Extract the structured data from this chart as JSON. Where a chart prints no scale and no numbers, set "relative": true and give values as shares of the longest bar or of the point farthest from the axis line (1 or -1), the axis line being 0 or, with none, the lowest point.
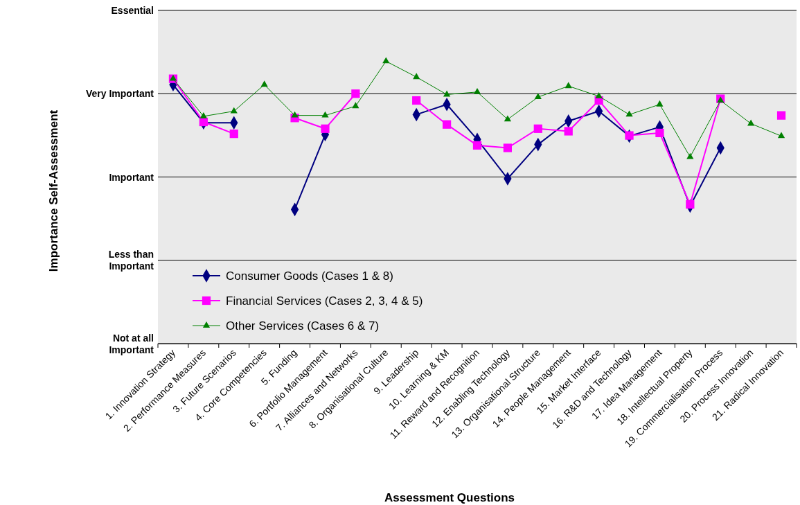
{
  "chart_data": {
    "type": "line",
    "xlabel": "Assessment Questions",
    "ylabel": "Importance Self-Assessment",
    "categories": [
      "1. Innovation Strategy",
      "2. Performance Measures",
      "3. Future Scenarios",
      "4. Core Competencies",
      "5. Funding",
      "6. Portfolio Management",
      "7. Alliances and Networks",
      "8. Organisational Culture",
      "9. Leadership",
      "10. Learning & KM",
      "11. Reward and Recognition",
      "12. Enabling Technology",
      "13. Organisational Structure",
      "14. People Management",
      "15. Market Interface",
      "16. R&D and Technology",
      "17. Idea Management",
      "18. Intellectual Property",
      "19. Commercialisation Process",
      "20. Process Innovation",
      "21. Radical Innovation"
    ],
    "series": [
      {
        "name": "Consumer Goods (Cases 1 & 8)",
        "color": "#000080",
        "marker": "diamond",
        "values": [
          0.917,
          0.782,
          0.782,
          null,
          0.475,
          0.74,
          null,
          null,
          0.811,
          0.847,
          0.723,
          0.584,
          0.705,
          0.788,
          0.823,
          0.735,
          0.767,
          0.487,
          0.693,
          null,
          null
        ]
      },
      {
        "name": "Financial Services (Cases 2, 3, 4 & 5)",
        "color": "#ff00ff",
        "marker": "square",
        "values": [
          0.938,
          0.785,
          0.743,
          null,
          0.799,
          0.761,
          0.885,
          null,
          0.861,
          0.776,
          0.702,
          0.693,
          0.761,
          0.752,
          0.861,
          0.737,
          0.746,
          0.493,
          0.867,
          null,
          0.808
        ]
      },
      {
        "name": "Other Services (Cases 6 & 7)",
        "color": "#008000",
        "marker": "triangle",
        "values": [
          0.938,
          0.805,
          0.823,
          0.917,
          0.808,
          0.808,
          0.841,
          1,
          0.944,
          0.882,
          0.891,
          0.794,
          0.873,
          0.912,
          0.876,
          0.811,
          0.847,
          0.661,
          0.861,
          0.779,
          0.735
        ]
      }
    ],
    "relative": true,
    "ref_lines": [
      {
        "axis": "y",
        "value": 0,
        "label": "Not at all Important",
        "color": "#000000"
      },
      {
        "axis": "y",
        "value": 0.295,
        "label": "Less than Important",
        "color": "#000000"
      },
      {
        "axis": "y",
        "value": 0.59,
        "label": "Important",
        "color": "#000000"
      },
      {
        "axis": "y",
        "value": 0.885,
        "label": "Very Important",
        "color": "#000000"
      },
      {
        "axis": "y",
        "value": 1.18,
        "label": "Essential",
        "color": "#000000"
      }
    ],
    "legend": "bottom left",
    "line_style": "solid"
  }
}
